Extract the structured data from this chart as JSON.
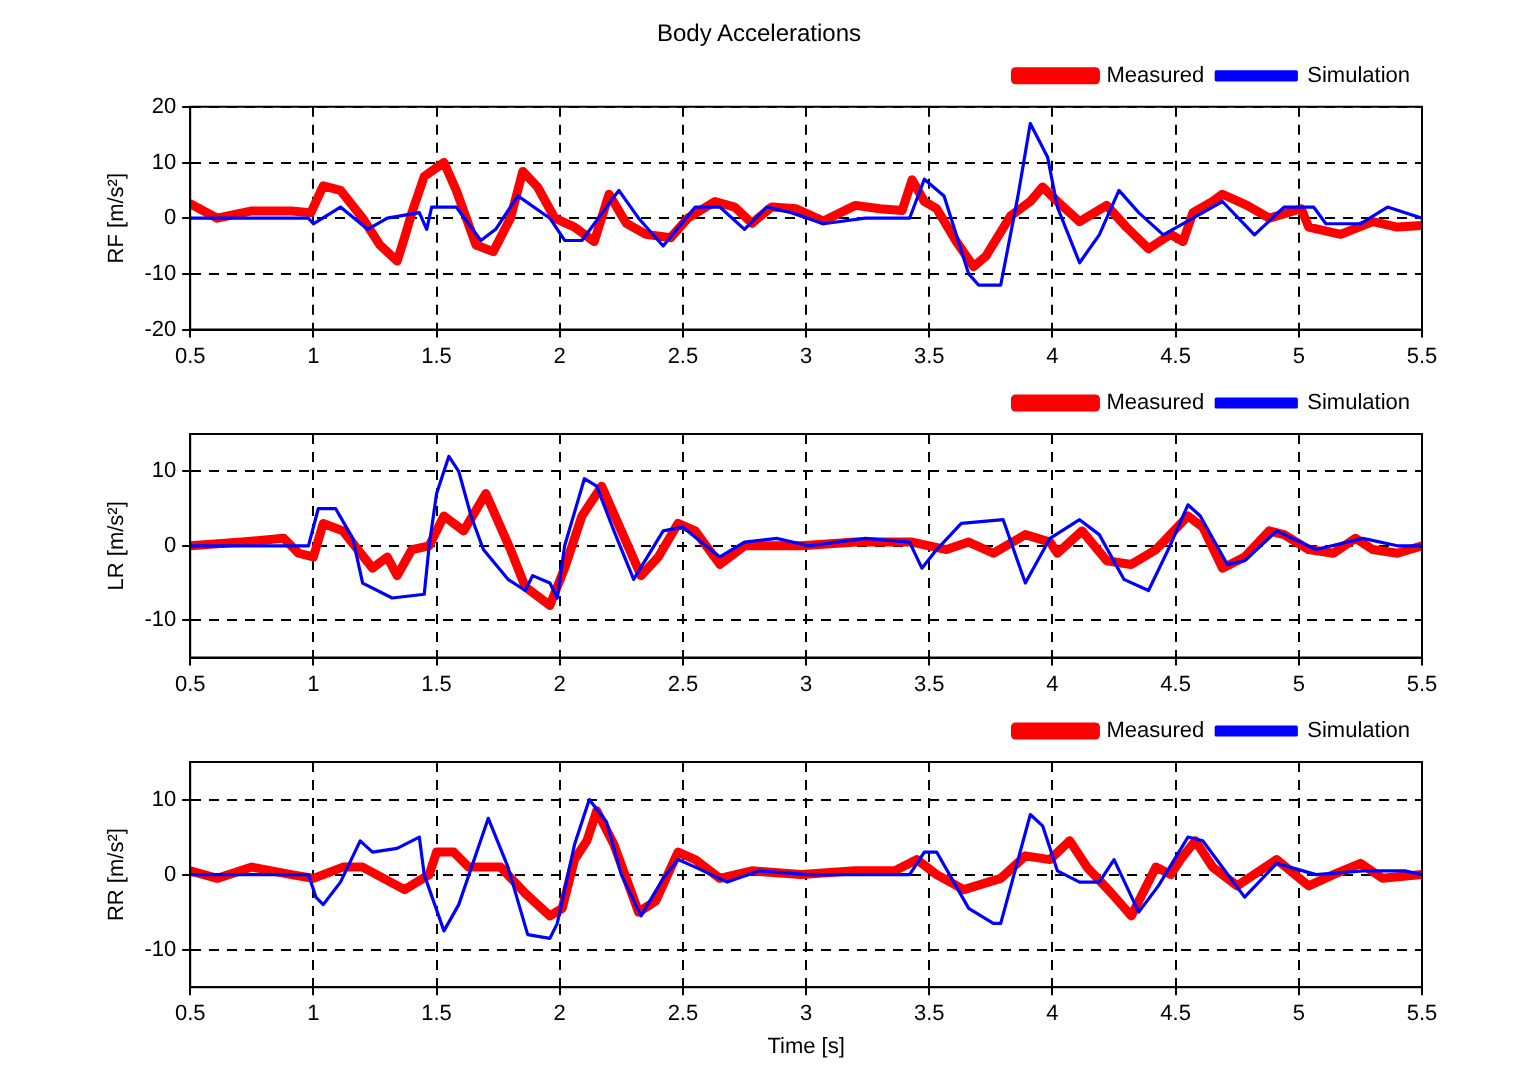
{
  "chart_data": [
    {
      "type": "line",
      "title": "Body Accelerations",
      "ylabel": "RF [m/s²]",
      "xlim": [
        0.5,
        5.5
      ],
      "xticks": [
        0.5,
        1,
        1.5,
        2,
        2.5,
        3,
        3.5,
        4,
        4.5,
        5,
        5.5
      ],
      "ylim": [
        -20,
        20
      ],
      "yticks": [
        -20,
        -10,
        0,
        10,
        20
      ],
      "grid": true,
      "legend": "top right",
      "marker": "none",
      "line_style": "solid",
      "series": [
        {
          "name": "Measured",
          "color": "#ff0000",
          "x": [
            0.5,
            0.61,
            0.75,
            0.91,
            0.99,
            1.04,
            1.11,
            1.2,
            1.27,
            1.34,
            1.37,
            1.4,
            1.45,
            1.53,
            1.58,
            1.66,
            1.73,
            1.8,
            1.85,
            1.91,
            1.98,
            2.06,
            2.14,
            2.2,
            2.27,
            2.35,
            2.45,
            2.52,
            2.63,
            2.71,
            2.78,
            2.86,
            2.96,
            3.07,
            3.2,
            3.3,
            3.39,
            3.43,
            3.48,
            3.53,
            3.61,
            3.68,
            3.73,
            3.83,
            3.91,
            3.96,
            4.02,
            4.11,
            4.22,
            4.3,
            4.39,
            4.48,
            4.53,
            4.57,
            4.65,
            4.69,
            4.79,
            4.88,
            5.01,
            5.04,
            5.17,
            5.3,
            5.4,
            5.5
          ],
          "values": [
            2.6,
            0,
            1.3,
            1.3,
            1,
            5.8,
            5,
            0,
            -4.8,
            -7.7,
            -3.5,
            1,
            7.5,
            10,
            5,
            -4.8,
            -6,
            0,
            8.4,
            5.6,
            0,
            -1.6,
            -4.2,
            4.3,
            -0.9,
            -2.9,
            -3.5,
            0,
            3,
            2,
            -0.9,
            2,
            1.7,
            -0.5,
            2.3,
            1.7,
            1.4,
            6.9,
            3,
            1.7,
            -4.2,
            -8.7,
            -6.8,
            0.4,
            3,
            5.6,
            3,
            -0.6,
            2.3,
            -1.6,
            -5.5,
            -2.9,
            -4.2,
            1,
            3,
            4.3,
            2.3,
            0,
            1.7,
            -1.6,
            -2.9,
            -0.6,
            -1.6,
            -1.3
          ]
        },
        {
          "name": "Simulation",
          "color": "#0000ff",
          "x": [
            0.5,
            0.75,
            0.98,
            1.0,
            1.11,
            1.22,
            1.3,
            1.43,
            1.46,
            1.48,
            1.58,
            1.68,
            1.74,
            1.83,
            1.96,
            2.02,
            2.09,
            2.24,
            2.32,
            2.42,
            2.55,
            2.65,
            2.75,
            2.84,
            2.94,
            3.07,
            3.24,
            3.42,
            3.48,
            3.56,
            3.66,
            3.7,
            3.79,
            3.86,
            3.91,
            3.98,
            4.02,
            4.11,
            4.19,
            4.27,
            4.35,
            4.45,
            4.57,
            4.69,
            4.82,
            4.94,
            5.06,
            5.11,
            5.25,
            5.36,
            5.5
          ],
          "values": [
            0,
            0,
            0,
            -1,
            2,
            -2,
            0,
            1,
            -2,
            2,
            2,
            -4,
            -2,
            4,
            0,
            -4,
            -4,
            5,
            0,
            -5,
            2,
            2,
            -2,
            2,
            1,
            -1,
            0,
            0,
            7,
            4,
            -10,
            -12,
            -12,
            4,
            17,
            11,
            2,
            -8,
            -3,
            5,
            1,
            -3,
            0,
            3,
            -3,
            2,
            2,
            -1,
            -1,
            2,
            0
          ]
        }
      ]
    },
    {
      "type": "line",
      "ylabel": "LR [m/s²]",
      "xlim": [
        0.5,
        5.5
      ],
      "xticks": [
        0.5,
        1,
        1.5,
        2,
        2.5,
        3,
        3.5,
        4,
        4.5,
        5,
        5.5
      ],
      "ylim": [
        -15,
        15
      ],
      "yticks": [
        -10,
        0,
        10
      ],
      "grid": true,
      "legend": "top right",
      "marker": "none",
      "line_style": "solid",
      "series": [
        {
          "name": "Measured",
          "color": "#ff0000",
          "x": [
            0.5,
            0.71,
            0.88,
            0.94,
            1.0,
            1.04,
            1.12,
            1.24,
            1.3,
            1.34,
            1.4,
            1.47,
            1.53,
            1.61,
            1.7,
            1.8,
            1.86,
            1.96,
            2.02,
            2.09,
            2.17,
            2.25,
            2.33,
            2.4,
            2.48,
            2.55,
            2.65,
            2.75,
            2.98,
            3.2,
            3.43,
            3.57,
            3.66,
            3.76,
            3.89,
            3.99,
            4.02,
            4.12,
            4.22,
            4.32,
            4.42,
            4.55,
            4.61,
            4.69,
            4.78,
            4.88,
            4.94,
            5.04,
            5.14,
            5.23,
            5.3,
            5.4,
            5.5
          ],
          "values": [
            0,
            0.5,
            1,
            -1,
            -1.5,
            3,
            2,
            -3,
            -1.5,
            -4,
            -0.5,
            0,
            4,
            2,
            7,
            -0.5,
            -5.5,
            -8,
            -3,
            4,
            8,
            2,
            -4,
            -1.5,
            3,
            2,
            -2.5,
            0,
            0,
            0.5,
            0.5,
            -0.5,
            0.5,
            -1,
            1.5,
            0.5,
            -1,
            2,
            -2,
            -2.5,
            -0.5,
            4,
            2.5,
            -3,
            -1.5,
            2,
            1.5,
            -0.5,
            -1,
            1,
            -0.5,
            -1,
            0
          ]
        },
        {
          "name": "Simulation",
          "color": "#0000ff",
          "x": [
            0.5,
            0.98,
            1.02,
            1.09,
            1.16,
            1.2,
            1.32,
            1.45,
            1.47,
            1.5,
            1.55,
            1.59,
            1.64,
            1.69,
            1.79,
            1.86,
            1.89,
            1.96,
            1.99,
            2.02,
            2.1,
            2.15,
            2.22,
            2.3,
            2.42,
            2.5,
            2.65,
            2.75,
            2.88,
            3.01,
            3.24,
            3.42,
            3.47,
            3.53,
            3.63,
            3.8,
            3.89,
            3.99,
            4.11,
            4.19,
            4.29,
            4.39,
            4.47,
            4.55,
            4.6,
            4.71,
            4.78,
            4.91,
            5.07,
            5.26,
            5.4,
            5.5
          ],
          "values": [
            0,
            0,
            5,
            5,
            1,
            -5,
            -7,
            -6.5,
            0,
            7,
            12,
            10,
            4,
            -0.5,
            -4.5,
            -6,
            -4,
            -5,
            -7,
            0,
            9,
            8,
            2,
            -4.5,
            2,
            2.5,
            -1.5,
            0.5,
            1,
            0,
            1,
            0.5,
            -3,
            -0.5,
            3,
            3.5,
            -5,
            1,
            3.5,
            1.5,
            -4.5,
            -6,
            -0.5,
            5.5,
            4,
            -2.5,
            -2,
            2,
            -0.5,
            1,
            0,
            0
          ]
        }
      ]
    },
    {
      "type": "line",
      "ylabel": "RR [m/s²]",
      "xlabel": "Time [s]",
      "xlim": [
        0.5,
        5.5
      ],
      "xticks": [
        0.5,
        1,
        1.5,
        2,
        2.5,
        3,
        3.5,
        4,
        4.5,
        5,
        5.5
      ],
      "ylim": [
        -15,
        15
      ],
      "yticks": [
        -10,
        0,
        10
      ],
      "grid": true,
      "legend": "top right",
      "marker": "none",
      "line_style": "solid",
      "series": [
        {
          "name": "Measured",
          "color": "#ff0000",
          "x": [
            0.5,
            0.61,
            0.75,
            0.91,
            1.0,
            1.12,
            1.2,
            1.37,
            1.47,
            1.5,
            1.57,
            1.63,
            1.76,
            1.86,
            1.96,
            2.01,
            2.06,
            2.11,
            2.15,
            2.22,
            2.32,
            2.39,
            2.48,
            2.55,
            2.65,
            2.78,
            2.98,
            3.2,
            3.36,
            3.45,
            3.53,
            3.64,
            3.79,
            3.89,
            3.99,
            4.07,
            4.14,
            4.24,
            4.32,
            4.42,
            4.48,
            4.52,
            4.58,
            4.65,
            4.75,
            4.91,
            5.04,
            5.14,
            5.25,
            5.34,
            5.5
          ],
          "values": [
            0.5,
            -0.5,
            1,
            0,
            -0.5,
            1,
            1,
            -2,
            0,
            3,
            3,
            1,
            1,
            -2.5,
            -5.5,
            -4.5,
            2,
            4.5,
            8.5,
            4,
            -5,
            -3.5,
            3,
            2,
            -0.5,
            0.5,
            0,
            0.5,
            0.5,
            2,
            0,
            -2,
            -0.5,
            2.5,
            2,
            4.5,
            1,
            -2.5,
            -5.5,
            1,
            0,
            2,
            4.5,
            1,
            -1.5,
            2,
            -1.5,
            0,
            1.5,
            -0.5,
            0
          ]
        },
        {
          "name": "Simulation",
          "color": "#0000ff",
          "x": [
            0.5,
            0.98,
            1.01,
            1.04,
            1.11,
            1.19,
            1.24,
            1.34,
            1.43,
            1.45,
            1.53,
            1.59,
            1.71,
            1.79,
            1.87,
            1.96,
            1.99,
            2.06,
            2.12,
            2.19,
            2.25,
            2.33,
            2.42,
            2.48,
            2.55,
            2.68,
            2.81,
            3.01,
            3.24,
            3.42,
            3.48,
            3.53,
            3.66,
            3.76,
            3.79,
            3.91,
            3.96,
            4.02,
            4.11,
            4.19,
            4.25,
            4.35,
            4.43,
            4.55,
            4.61,
            4.78,
            4.91,
            5.07,
            5.26,
            5.43,
            5.5
          ],
          "values": [
            0,
            0,
            -3,
            -4,
            -1,
            4.5,
            3,
            3.5,
            5,
            0,
            -7.5,
            -4,
            7.5,
            1,
            -8,
            -8.5,
            -6.5,
            4,
            10,
            7,
            0,
            -5.5,
            -0.5,
            2,
            1,
            -1,
            0.5,
            0,
            0,
            0,
            3,
            3,
            -4.5,
            -6.5,
            -6.5,
            8,
            6.5,
            0.5,
            -1,
            -1,
            2,
            -5,
            -1.5,
            5,
            4.5,
            -3,
            1.5,
            0,
            0.5,
            0.5,
            0
          ]
        }
      ]
    }
  ]
}
